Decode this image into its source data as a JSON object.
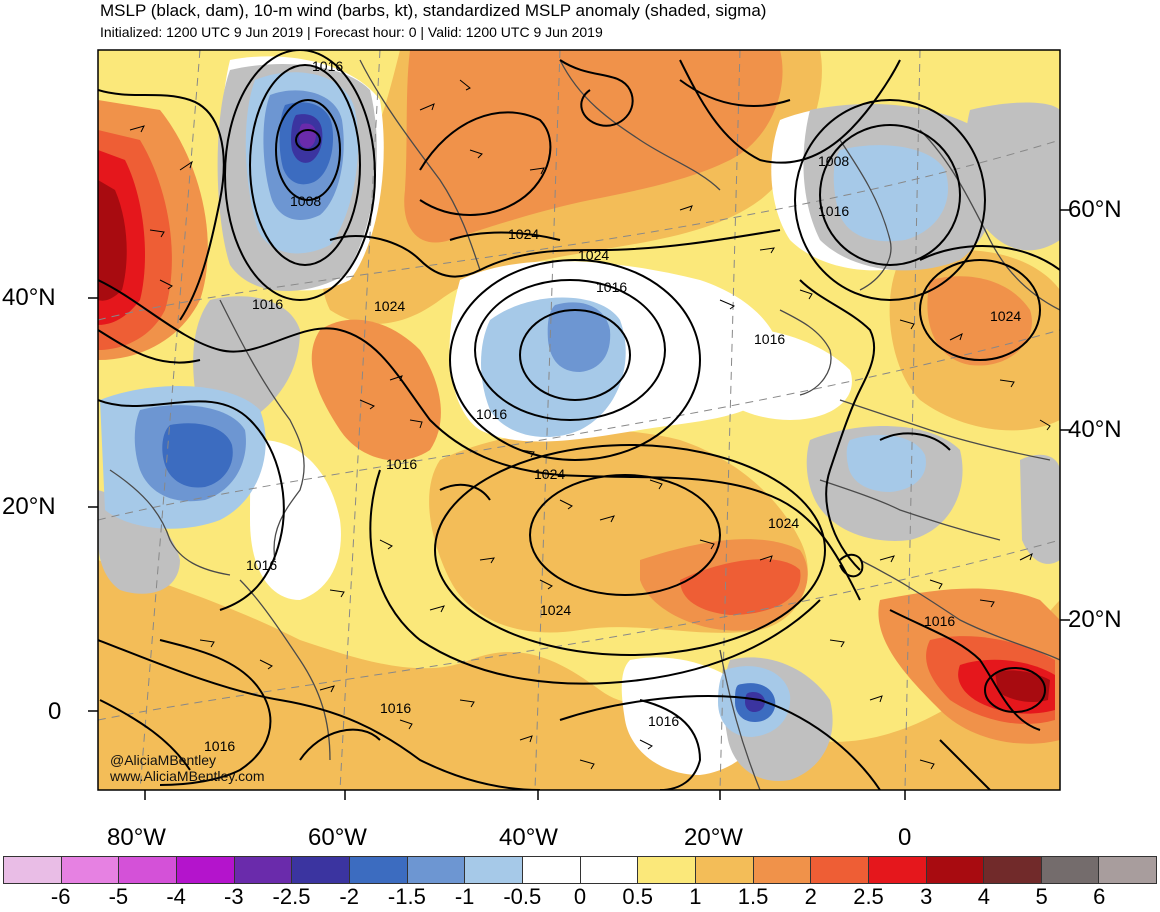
{
  "header": {
    "title": "MSLP (black, dam), 10-m wind (barbs, kt), standardized MSLP anomaly (shaded, sigma)",
    "subtitle": "Initialized: 1200 UTC 9 Jun 2019 | Forecast hour: 0 | Valid: 1200 UTC 9 Jun 2019"
  },
  "map": {
    "left_lat_labels": [
      "40°N",
      "20°N",
      "0"
    ],
    "right_lat_labels": [
      "60°N",
      "40°N",
      "20°N"
    ],
    "lon_labels": [
      "80°W",
      "60°W",
      "40°W",
      "20°W",
      "0"
    ],
    "isobar_labels": [
      "1016",
      "1008",
      "1016",
      "1024",
      "1024",
      "1024",
      "1016",
      "1016",
      "1008",
      "1016",
      "1024",
      "1016",
      "1016",
      "1024",
      "1024",
      "1016",
      "1024",
      "1016",
      "1016",
      "1016",
      "1016"
    ],
    "credit_handle": "@AliciaMBentley",
    "credit_site": "www.AliciaMBentley.com"
  },
  "colorbar": {
    "labels": [
      "-6",
      "-5",
      "-4",
      "-3",
      "-2.5",
      "-2",
      "-1.5",
      "-1",
      "-0.5",
      "0",
      "0.5",
      "1",
      "1.5",
      "2",
      "2.5",
      "3",
      "4",
      "5",
      "6"
    ],
    "colors": [
      "#e9bde6",
      "#e681e2",
      "#d451d8",
      "#b414cc",
      "#6a2bab",
      "#3b34a0",
      "#3c6cc0",
      "#6d96d2",
      "#a6c9e8",
      "#ffffff",
      "#ffffff",
      "#fbe87a",
      "#f3bd58",
      "#f0924a",
      "#ee5e35",
      "#e5171c",
      "#a80b10",
      "#712a2a",
      "#746c6c",
      "#a89d9d"
    ]
  }
}
